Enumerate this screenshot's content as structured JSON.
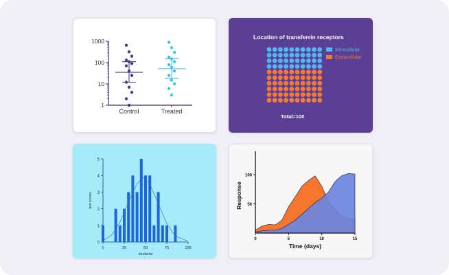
{
  "colors": {
    "background": "#f0eff5",
    "dot_control": "#4c3a8f",
    "dot_treated": "#3cc4ea",
    "waffle_bg": "#5a3f95",
    "intracellular": "#4fb8f0",
    "extracellular": "#f47a38",
    "hist_bg": "#a5ebfa",
    "hist_bar": "#1e68d6",
    "area_orange": "#f5762c",
    "area_blue": "#6b86e0"
  },
  "chart_data": [
    {
      "type": "scatter",
      "categories": [
        "Control",
        "Treated"
      ],
      "yscale": "log",
      "ylim": [
        1,
        1000
      ],
      "ytick_labels": [
        "1000",
        "100",
        "10",
        "1"
      ],
      "ytick_values": [
        1000,
        100,
        10,
        1
      ],
      "series": [
        {
          "name": "Control",
          "values": [
            650,
            320,
            200,
            130,
            110,
            90,
            70,
            40,
            25,
            12,
            7,
            4,
            2,
            1
          ],
          "mean": 35,
          "upper": 110,
          "lower": 12
        },
        {
          "name": "Treated",
          "values": [
            900,
            500,
            300,
            180,
            150,
            110,
            80,
            60,
            40,
            25,
            15,
            10,
            6,
            3
          ],
          "mean": 52,
          "upper": 150,
          "lower": 18
        }
      ]
    },
    {
      "type": "waffle",
      "title": "Location of transferrin receptors",
      "total_label": "Total=100",
      "categories": [
        "Intracellular",
        "Extracellular"
      ],
      "values": [
        40,
        60
      ],
      "legend_position": "right"
    },
    {
      "type": "bar",
      "xlabel": "students",
      "ylabel": "test scores",
      "xlim": [
        0,
        100
      ],
      "ylim": [
        0,
        5
      ],
      "xtick_labels": [
        "0",
        "25",
        "50",
        "75",
        "100"
      ],
      "xtick_values": [
        0,
        25,
        50,
        75,
        100
      ],
      "ytick_labels": [
        "0",
        "1",
        "2",
        "3",
        "4",
        "5"
      ],
      "ytick_values": [
        0,
        1,
        2,
        3,
        4,
        5
      ],
      "x": [
        0,
        15,
        20,
        25,
        30,
        35,
        40,
        45,
        50,
        55,
        60,
        65,
        70,
        75,
        85
      ],
      "values": [
        1,
        2,
        1,
        2,
        3,
        4,
        3,
        5,
        4,
        4,
        1,
        3,
        1,
        1,
        1
      ],
      "curve": [
        [
          0,
          0.1
        ],
        [
          10,
          0.4
        ],
        [
          20,
          1.2
        ],
        [
          30,
          2.4
        ],
        [
          40,
          3.5
        ],
        [
          47,
          3.9
        ],
        [
          55,
          3.5
        ],
        [
          65,
          2.3
        ],
        [
          75,
          1.1
        ],
        [
          85,
          0.35
        ],
        [
          100,
          0.05
        ]
      ]
    },
    {
      "type": "area",
      "xlabel": "Time (days)",
      "ylabel": "Response",
      "xlim": [
        0,
        15
      ],
      "ylim": [
        0,
        140
      ],
      "xtick_labels": [
        "0",
        "5",
        "10",
        "15"
      ],
      "xtick_values": [
        0,
        5,
        10,
        15
      ],
      "ytick_labels": [
        "50",
        "100"
      ],
      "ytick_values": [
        50,
        100
      ],
      "series": [
        {
          "name": "",
          "x": [
            0,
            1,
            2,
            3,
            4,
            5,
            6,
            7,
            8,
            9,
            10,
            11,
            12,
            13,
            14,
            15
          ],
          "values": [
            5,
            12,
            15,
            14,
            22,
            45,
            62,
            80,
            90,
            98,
            80,
            55,
            40,
            30,
            25,
            25
          ]
        },
        {
          "name": "",
          "x": [
            0,
            1,
            2,
            3,
            4,
            5,
            6,
            7,
            8,
            9,
            10,
            11,
            12,
            13,
            14,
            15
          ],
          "values": [
            2,
            4,
            5,
            5,
            8,
            15,
            22,
            32,
            42,
            52,
            60,
            70,
            88,
            98,
            102,
            101
          ]
        }
      ]
    }
  ]
}
